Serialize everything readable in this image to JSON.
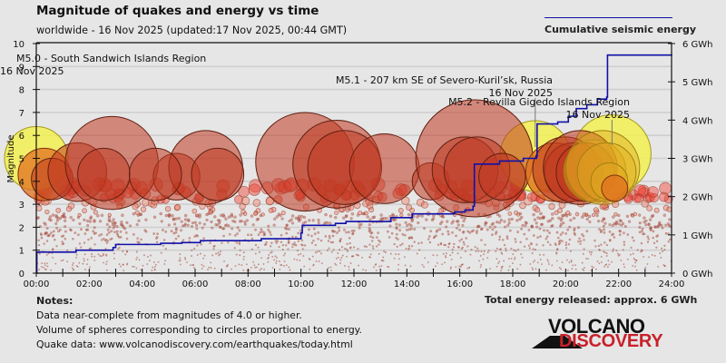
{
  "header": {
    "title": "Magnitude of quakes and energy vs time",
    "subtitle": "worldwide - 16 Nov 2025 (updated:17 Nov 2025, 00:44 GMT)"
  },
  "legend": {
    "label": "Cumulative seismic energy",
    "line_color": "#1010aa"
  },
  "notes": {
    "title": "Notes:",
    "lines": [
      "Data near-complete from magnitudes of 4.0 or higher.",
      "Volume of spheres corresponding to circles proportional to energy.",
      "Quake data: www.volcanodiscovery.com/earthquakes/today.html"
    ]
  },
  "total_energy": "Total energy released: approx. 6 GWh",
  "logo": {
    "top": "VOLCANO",
    "bottom": "DISCOVERY",
    "top_color": "#111111",
    "bottom_color": "#c8202a"
  },
  "chart_data": {
    "type": "scatter",
    "title": "Magnitude of quakes and energy vs time",
    "subtitle": "worldwide - 16 Nov 2025 (updated:17 Nov 2025, 00:44 GMT)",
    "xlabel": "",
    "ylabel": "Magnitude",
    "y2label": "Cumulative seismic energy",
    "xlim": [
      0,
      24
    ],
    "ylim": [
      0,
      10
    ],
    "y2lim": [
      0,
      6
    ],
    "grid": true,
    "legend_position": "top-right",
    "x_ticks": [
      "00:00",
      "02:00",
      "04:00",
      "06:00",
      "08:00",
      "10:00",
      "12:00",
      "14:00",
      "16:00",
      "18:00",
      "20:00",
      "22:00",
      "24:00"
    ],
    "y_ticks": [
      "0",
      "1",
      "2",
      "3",
      "4",
      "5",
      "6",
      "7",
      "8",
      "9",
      "10"
    ],
    "y2_ticks": [
      "0 GWh",
      "1 GWh",
      "2 GWh",
      "3 GWh",
      "4 GWh",
      "5 GWh",
      "6 GWh"
    ],
    "colors": {
      "highlight": "#f2ee50",
      "large": "#c85040",
      "medium": "#f03020",
      "small": "#f09070",
      "tiny": "#a04030",
      "energy_line": "#1010aa"
    },
    "annotations": [
      {
        "label": "M5.0 - South Sandwich Islands Region",
        "date": "16 Nov 2025",
        "time_h": 0.0,
        "mag": 5.0
      },
      {
        "label": "M5.1 - 207 km SE of Severo-Kuril’sk, Russia",
        "date": "16 Nov 2025",
        "time_h": 18.85,
        "mag": 5.1
      },
      {
        "label": "M5.2 - Revilla Gigedo Islands Region",
        "date": "16 Nov 2025",
        "time_h": 21.75,
        "mag": 5.2
      }
    ],
    "major_quakes": [
      {
        "t": 0.0,
        "mag": 5.0,
        "kind": "highlight"
      },
      {
        "t": 18.85,
        "mag": 5.1,
        "kind": "highlight"
      },
      {
        "t": 21.75,
        "mag": 5.2,
        "kind": "highlight"
      },
      {
        "t": 0.3,
        "mag": 4.3,
        "kind": "orange"
      },
      {
        "t": 0.6,
        "mag": 4.1,
        "kind": "large"
      },
      {
        "t": 1.55,
        "mag": 4.4,
        "kind": "large"
      },
      {
        "t": 2.85,
        "mag": 4.8,
        "kind": "large"
      },
      {
        "t": 2.55,
        "mag": 4.3,
        "kind": "large"
      },
      {
        "t": 5.3,
        "mag": 4.2,
        "kind": "large"
      },
      {
        "t": 6.4,
        "mag": 4.6,
        "kind": "large"
      },
      {
        "t": 6.85,
        "mag": 4.3,
        "kind": "large"
      },
      {
        "t": 4.5,
        "mag": 4.3,
        "kind": "large"
      },
      {
        "t": 10.15,
        "mag": 4.85,
        "kind": "large"
      },
      {
        "t": 11.35,
        "mag": 4.75,
        "kind": "large"
      },
      {
        "t": 11.65,
        "mag": 4.6,
        "kind": "large"
      },
      {
        "t": 13.15,
        "mag": 4.55,
        "kind": "large"
      },
      {
        "t": 14.9,
        "mag": 4.0,
        "kind": "large"
      },
      {
        "t": 16.55,
        "mag": 5.0,
        "kind": "large"
      },
      {
        "t": 16.2,
        "mag": 4.5,
        "kind": "large"
      },
      {
        "t": 16.65,
        "mag": 4.5,
        "kind": "large"
      },
      {
        "t": 17.6,
        "mag": 4.2,
        "kind": "large"
      },
      {
        "t": 19.6,
        "mag": 4.4,
        "kind": "orange"
      },
      {
        "t": 20.0,
        "mag": 4.5,
        "kind": "large"
      },
      {
        "t": 20.3,
        "mag": 4.4,
        "kind": "large"
      },
      {
        "t": 20.55,
        "mag": 4.6,
        "kind": "large"
      },
      {
        "t": 20.75,
        "mag": 4.4,
        "kind": "large"
      },
      {
        "t": 21.1,
        "mag": 4.45,
        "kind": "gold"
      },
      {
        "t": 21.4,
        "mag": 4.6,
        "kind": "gold"
      },
      {
        "t": 21.55,
        "mag": 4.4,
        "kind": "gold"
      },
      {
        "t": 21.65,
        "mag": 4.0,
        "kind": "gold"
      },
      {
        "t": 21.85,
        "mag": 3.7,
        "kind": "orange"
      }
    ],
    "energy_steps": [
      {
        "t": 0.0,
        "gwh": 0.0
      },
      {
        "t": 0.02,
        "gwh": 0.55
      },
      {
        "t": 1.5,
        "gwh": 0.6
      },
      {
        "t": 2.9,
        "gwh": 0.67
      },
      {
        "t": 3.0,
        "gwh": 0.75
      },
      {
        "t": 4.7,
        "gwh": 0.78
      },
      {
        "t": 5.5,
        "gwh": 0.8
      },
      {
        "t": 6.2,
        "gwh": 0.85
      },
      {
        "t": 8.5,
        "gwh": 0.9
      },
      {
        "t": 10.0,
        "gwh": 1.05
      },
      {
        "t": 10.05,
        "gwh": 1.25
      },
      {
        "t": 11.3,
        "gwh": 1.3
      },
      {
        "t": 11.7,
        "gwh": 1.35
      },
      {
        "t": 13.4,
        "gwh": 1.45
      },
      {
        "t": 14.2,
        "gwh": 1.55
      },
      {
        "t": 15.8,
        "gwh": 1.6
      },
      {
        "t": 16.2,
        "gwh": 1.65
      },
      {
        "t": 16.5,
        "gwh": 1.75
      },
      {
        "t": 16.55,
        "gwh": 2.85
      },
      {
        "t": 17.5,
        "gwh": 2.93
      },
      {
        "t": 18.4,
        "gwh": 3.0
      },
      {
        "t": 18.9,
        "gwh": 3.05
      },
      {
        "t": 18.92,
        "gwh": 3.9
      },
      {
        "t": 19.7,
        "gwh": 3.95
      },
      {
        "t": 20.1,
        "gwh": 4.1
      },
      {
        "t": 20.4,
        "gwh": 4.3
      },
      {
        "t": 20.8,
        "gwh": 4.4
      },
      {
        "t": 21.2,
        "gwh": 4.55
      },
      {
        "t": 21.55,
        "gwh": 4.6
      },
      {
        "t": 21.58,
        "gwh": 5.7
      },
      {
        "t": 24.0,
        "gwh": 5.72
      }
    ]
  }
}
